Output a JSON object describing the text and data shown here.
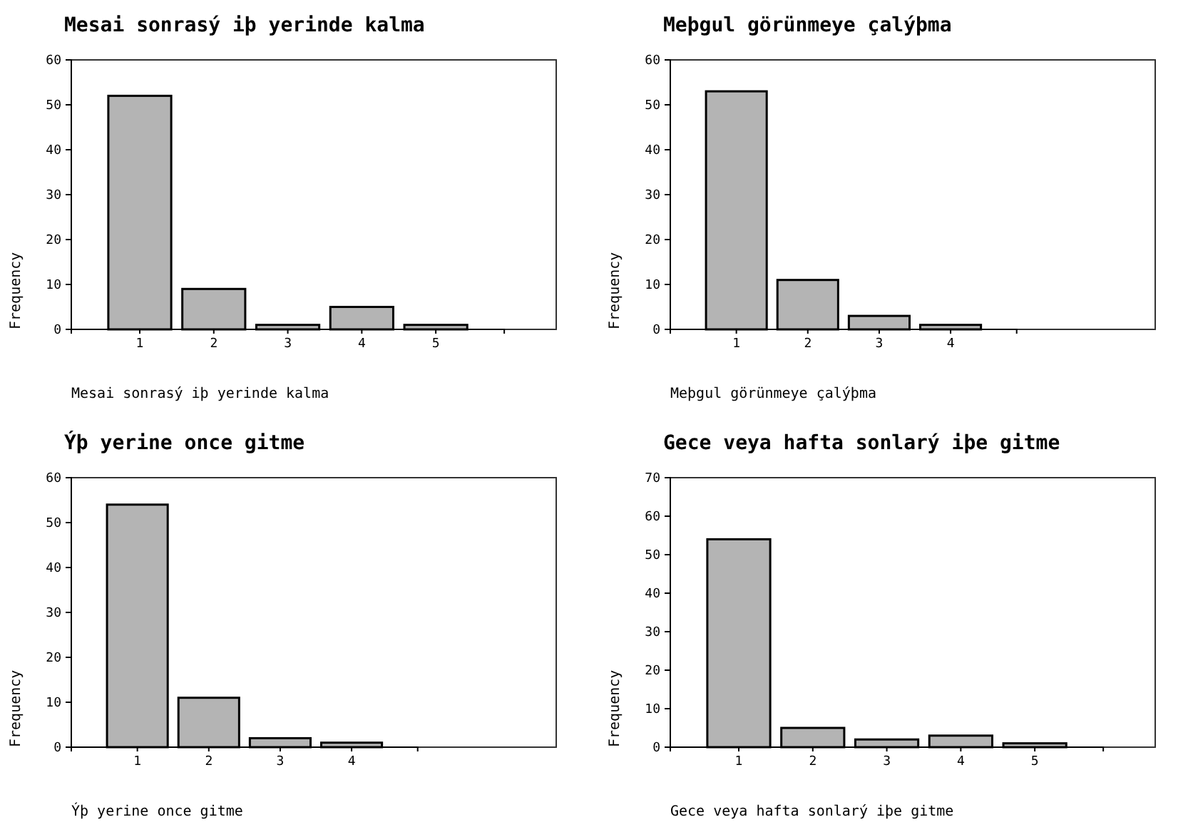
{
  "chart_data": [
    {
      "type": "bar",
      "title": "Mesai sonrasý iþ yerinde kalma",
      "xlabel": "Mesai sonrasý iþ yerinde kalma",
      "ylabel": "Frequency",
      "categories": [
        "1",
        "2",
        "3",
        "4",
        "5"
      ],
      "values": [
        52,
        9,
        1,
        5,
        1
      ],
      "color": "#b4b4b4",
      "ylim": [
        0,
        60
      ],
      "yticks": [
        0,
        10,
        20,
        30,
        40,
        50,
        60
      ],
      "grid": false,
      "legend": false
    },
    {
      "type": "bar",
      "title": "Meþgul görünmeye çalýþma",
      "xlabel": "Meþgul görünmeye çalýþma",
      "ylabel": "Frequency",
      "categories": [
        "1",
        "2",
        "3",
        "4"
      ],
      "values": [
        53,
        11,
        3,
        1
      ],
      "color": "#b4b4b4",
      "ylim": [
        0,
        60
      ],
      "yticks": [
        0,
        10,
        20,
        30,
        40,
        50,
        60
      ],
      "grid": false,
      "legend": false
    },
    {
      "type": "bar",
      "title": "Ýþ yerine once gitme",
      "xlabel": "Ýþ yerine once gitme",
      "ylabel": "Frequency",
      "categories": [
        "1",
        "2",
        "3",
        "4"
      ],
      "values": [
        54,
        11,
        2,
        1
      ],
      "color": "#b4b4b4",
      "ylim": [
        0,
        60
      ],
      "yticks": [
        0,
        10,
        20,
        30,
        40,
        50,
        60
      ],
      "grid": false,
      "legend": false
    },
    {
      "type": "bar",
      "title": "Gece veya hafta sonlarý iþe gitme",
      "xlabel": "Gece veya hafta sonlarý iþe gitme",
      "ylabel": "Frequency",
      "categories": [
        "1",
        "2",
        "3",
        "4",
        "5"
      ],
      "values": [
        54,
        5,
        2,
        3,
        1
      ],
      "color": "#b4b4b4",
      "ylim": [
        0,
        70
      ],
      "yticks": [
        0,
        10,
        20,
        30,
        40,
        50,
        60,
        70
      ],
      "grid": false,
      "legend": false
    }
  ]
}
